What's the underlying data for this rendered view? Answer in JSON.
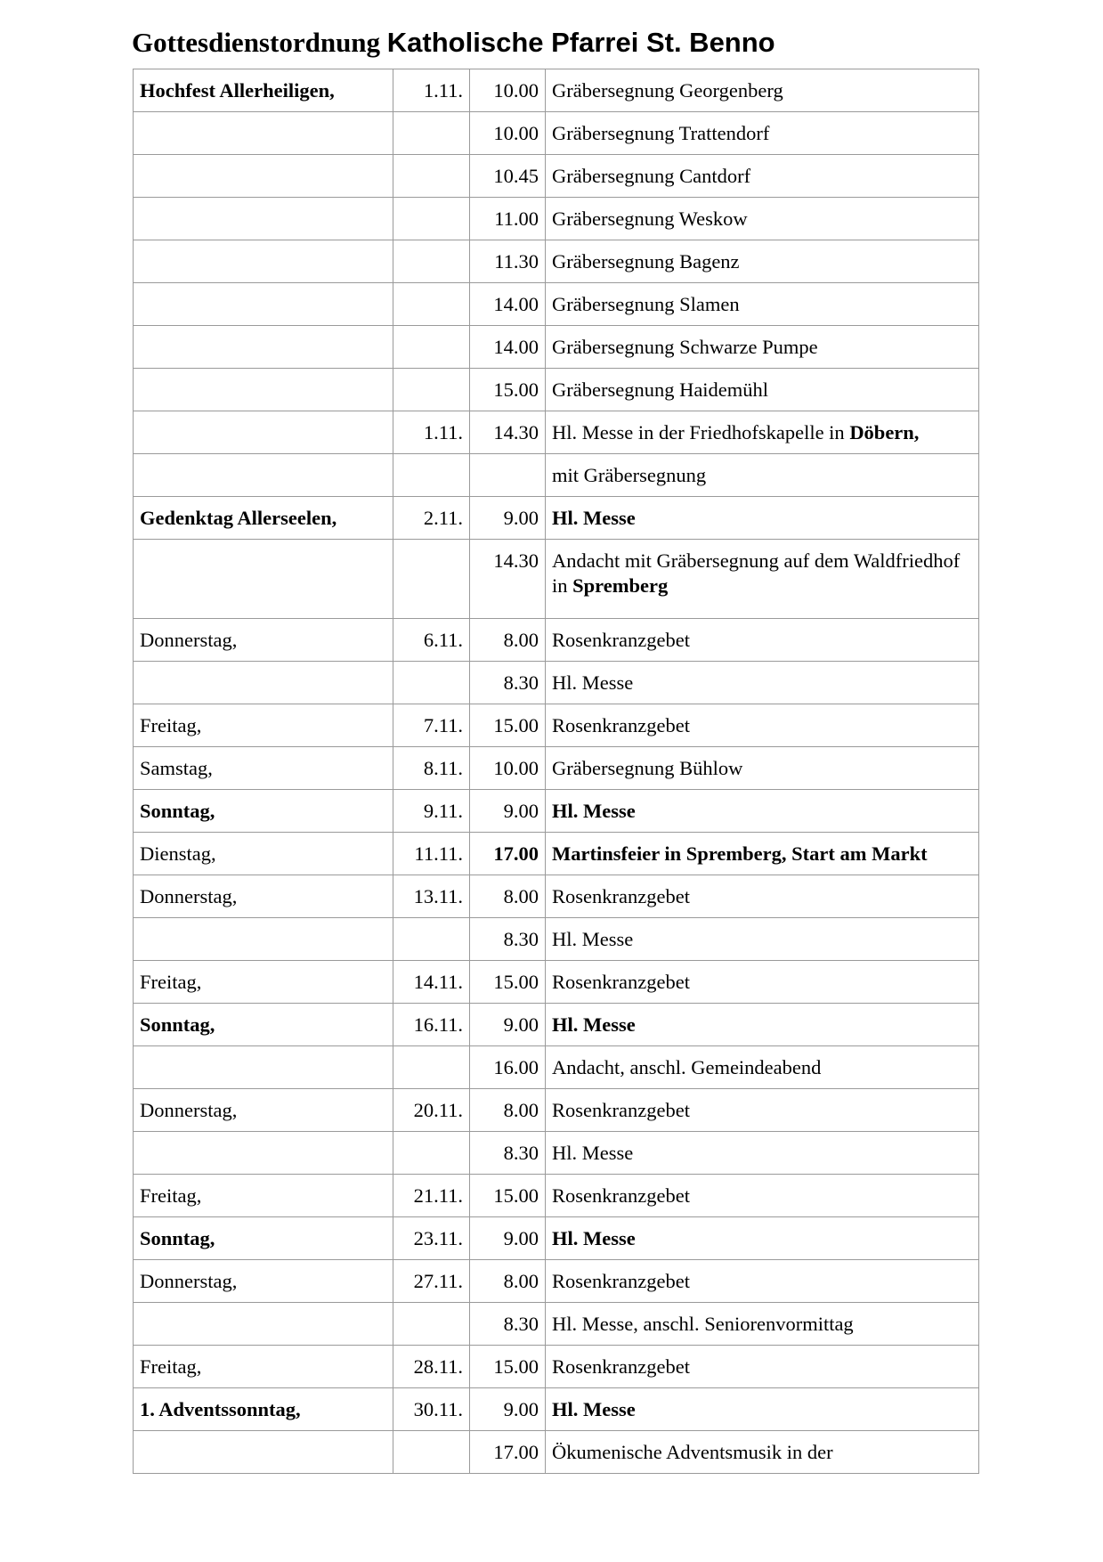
{
  "title": {
    "part1": "Gottesdienstordnung",
    "part2": "Katholische Pfarrei St. Benno"
  },
  "rows": [
    {
      "day": "Hochfest Allerheiligen,",
      "day_bold": true,
      "date": "1.11.",
      "time": "10.00",
      "desc": [
        {
          "t": "Gräbersegnung Georgenberg"
        }
      ]
    },
    {
      "day": "",
      "date": "",
      "time": "10.00",
      "desc": [
        {
          "t": "Gräbersegnung Trattendorf"
        }
      ]
    },
    {
      "day": "",
      "date": "",
      "time": "10.45",
      "desc": [
        {
          "t": "Gräbersegnung Cantdorf"
        }
      ]
    },
    {
      "day": "",
      "date": "",
      "time": "11.00",
      "desc": [
        {
          "t": "Gräbersegnung Weskow"
        }
      ]
    },
    {
      "day": "",
      "date": "",
      "time": "11.30",
      "desc": [
        {
          "t": "Gräbersegnung Bagenz"
        }
      ]
    },
    {
      "day": "",
      "date": "",
      "time": "14.00",
      "desc": [
        {
          "t": "Gräbersegnung Slamen"
        }
      ]
    },
    {
      "day": "",
      "date": "",
      "time": "14.00",
      "desc": [
        {
          "t": "Gräbersegnung Schwarze Pumpe"
        }
      ]
    },
    {
      "day": "",
      "date": "",
      "time": "15.00",
      "desc": [
        {
          "t": "Gräbersegnung Haidemühl"
        }
      ]
    },
    {
      "day": "",
      "date": "1.11.",
      "time": "14.30",
      "desc": [
        {
          "t": "Hl. Messe in der Friedhofskapelle in "
        },
        {
          "t": "Döbern,",
          "b": true
        }
      ]
    },
    {
      "day": "",
      "date": "",
      "time": "",
      "desc": [
        {
          "t": "mit Gräbersegnung"
        }
      ]
    },
    {
      "day": "Gedenktag Allerseelen,",
      "day_bold": true,
      "date": "2.11.",
      "time": "9.00",
      "desc": [
        {
          "t": "Hl. Messe",
          "b": true
        }
      ]
    },
    {
      "day": "",
      "date": "",
      "time": "14.30",
      "double": true,
      "desc": [
        {
          "t": "Andacht mit Gräbersegnung auf dem Waldfriedhof in "
        },
        {
          "t": "Spremberg",
          "b": true
        }
      ]
    },
    {
      "day": "Donnerstag,",
      "date": "6.11.",
      "time": "8.00",
      "desc": [
        {
          "t": "Rosenkranzgebet"
        }
      ]
    },
    {
      "day": "",
      "date": "",
      "time": "8.30",
      "desc": [
        {
          "t": "Hl. Messe"
        }
      ]
    },
    {
      "day": "Freitag,",
      "date": "7.11.",
      "time": "15.00",
      "desc": [
        {
          "t": "Rosenkranzgebet"
        }
      ]
    },
    {
      "day": "Samstag,",
      "date": "8.11.",
      "time": "10.00",
      "desc": [
        {
          "t": "Gräbersegnung Bühlow"
        }
      ]
    },
    {
      "day": "Sonntag,",
      "day_bold": true,
      "date": "9.11.",
      "time": "9.00",
      "desc": [
        {
          "t": "Hl. Messe",
          "b": true
        }
      ]
    },
    {
      "day": "Dienstag,",
      "date": "11.11.",
      "time": "17.00",
      "time_bold": true,
      "desc": [
        {
          "t": "Martinsfeier in Spremberg, Start am Markt",
          "b": true
        }
      ]
    },
    {
      "day": "Donnerstag,",
      "date": "13.11.",
      "time": "8.00",
      "desc": [
        {
          "t": "Rosenkranzgebet"
        }
      ]
    },
    {
      "day": "",
      "date": "",
      "time": "8.30",
      "desc": [
        {
          "t": "Hl. Messe"
        }
      ]
    },
    {
      "day": "Freitag,",
      "date": "14.11.",
      "time": "15.00",
      "desc": [
        {
          "t": "Rosenkranzgebet"
        }
      ]
    },
    {
      "day": "Sonntag,",
      "day_bold": true,
      "date": "16.11.",
      "time": "9.00",
      "desc": [
        {
          "t": "Hl. Messe",
          "b": true
        }
      ]
    },
    {
      "day": "",
      "date": "",
      "time": "16.00",
      "desc": [
        {
          "t": "Andacht, anschl. Gemeindeabend"
        }
      ]
    },
    {
      "day": "Donnerstag,",
      "date": "20.11.",
      "time": "8.00",
      "desc": [
        {
          "t": "Rosenkranzgebet"
        }
      ]
    },
    {
      "day": "",
      "date": "",
      "time": "8.30",
      "desc": [
        {
          "t": "Hl. Messe"
        }
      ]
    },
    {
      "day": "Freitag,",
      "date": "21.11.",
      "time": "15.00",
      "desc": [
        {
          "t": "Rosenkranzgebet"
        }
      ]
    },
    {
      "day": "Sonntag,",
      "day_bold": true,
      "date": "23.11.",
      "time": "9.00",
      "desc": [
        {
          "t": "Hl. Messe",
          "b": true
        }
      ]
    },
    {
      "day": "Donnerstag,",
      "date": "27.11.",
      "time": "8.00",
      "desc": [
        {
          "t": "Rosenkranzgebet"
        }
      ]
    },
    {
      "day": "",
      "date": "",
      "time": "8.30",
      "desc": [
        {
          "t": "Hl. Messe, anschl. Seniorenvormittag"
        }
      ]
    },
    {
      "day": "Freitag,",
      "date": "28.11.",
      "time": "15.00",
      "desc": [
        {
          "t": "Rosenkranzgebet"
        }
      ]
    },
    {
      "day": "1. Adventssonntag,",
      "day_bold": true,
      "date": "30.11.",
      "time": "9.00",
      "desc": [
        {
          "t": "Hl. Messe",
          "b": true
        }
      ]
    },
    {
      "day": "",
      "date": "",
      "time": "17.00",
      "desc": [
        {
          "t": "Ökumenische Adventsmusik in der"
        }
      ]
    }
  ]
}
